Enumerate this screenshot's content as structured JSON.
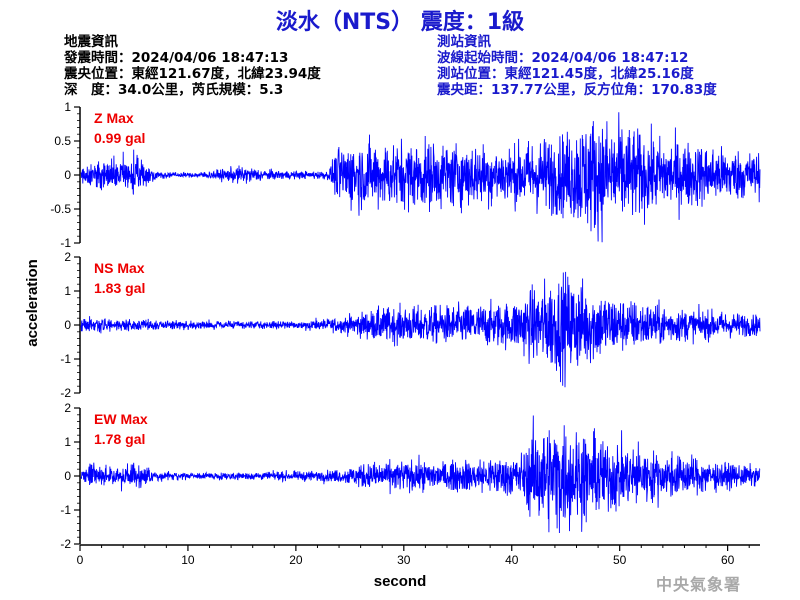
{
  "title": "淡水（NTS） 震度：1級",
  "eq_info": {
    "heading": "地震資訊",
    "origin_time": "發震時間：2024/04/06 18:47:13",
    "epicenter": "震央位置：東經121.67度，北緯23.94度",
    "depth_magnitude": "深　度：34.0公里，芮氏規模：5.3"
  },
  "station_info": {
    "heading": "測站資訊",
    "wave_start": "波線起始時間：2024/04/06 18:47:12",
    "location": "測站位置：東經121.45度，北緯25.16度",
    "distance": "震央距：137.77公里，反方位角：170.83度"
  },
  "watermark": "中央氣象署",
  "colors": {
    "trace": "#0000ff",
    "max_label": "#ee0000",
    "title": "#1a1acc"
  },
  "chart_data": [
    {
      "type": "line",
      "component": "Z",
      "max_label": "Z Max",
      "max_value": "0.99 gal",
      "ylim": [
        -1,
        1
      ],
      "yticks": [
        "1",
        "0.5",
        "0",
        "-0.5",
        "-1"
      ],
      "xlim": [
        0,
        63
      ],
      "envelope": {
        "t": [
          0,
          1,
          3,
          5,
          7,
          10,
          12,
          15,
          18,
          21,
          23,
          24,
          25,
          28,
          32,
          36,
          40,
          42,
          45,
          47,
          50,
          53,
          56,
          60,
          63
        ],
        "amp": [
          0.1,
          0.16,
          0.22,
          0.28,
          0.05,
          0.03,
          0.05,
          0.12,
          0.06,
          0.05,
          0.06,
          0.38,
          0.45,
          0.44,
          0.45,
          0.42,
          0.38,
          0.48,
          0.55,
          0.8,
          0.7,
          0.5,
          0.45,
          0.35,
          0.3
        ]
      },
      "peak_value": 0.99
    },
    {
      "type": "line",
      "component": "NS",
      "max_label": "NS Max",
      "max_value": "1.83 gal",
      "ylim": [
        -2,
        2
      ],
      "yticks": [
        "2",
        "1",
        "0",
        "-1",
        "-2"
      ],
      "xlim": [
        0,
        63
      ],
      "envelope": {
        "t": [
          0,
          1,
          3,
          6,
          10,
          15,
          20,
          24,
          25,
          28,
          32,
          36,
          40,
          42,
          43,
          45,
          46,
          48,
          50,
          53,
          56,
          60,
          63
        ],
        "amp": [
          0.2,
          0.3,
          0.22,
          0.18,
          0.15,
          0.12,
          0.15,
          0.25,
          0.35,
          0.6,
          0.65,
          0.7,
          0.8,
          1.3,
          1.5,
          1.8,
          1.6,
          1.25,
          0.95,
          0.75,
          0.55,
          0.45,
          0.35
        ]
      },
      "peak_value": 1.83
    },
    {
      "type": "line",
      "component": "EW",
      "max_label": "EW Max",
      "max_value": "1.78 gal",
      "ylim": [
        -2,
        2
      ],
      "yticks": [
        "2",
        "1",
        "0",
        "-1",
        "-2"
      ],
      "xlim": [
        0,
        63
      ],
      "envelope": {
        "t": [
          0,
          1,
          3,
          5,
          7,
          10,
          15,
          20,
          24,
          26,
          30,
          34,
          38,
          41,
          42,
          44,
          46,
          48,
          50,
          53,
          57,
          60,
          63
        ],
        "amp": [
          0.1,
          0.4,
          0.3,
          0.5,
          0.15,
          0.1,
          0.12,
          0.15,
          0.2,
          0.4,
          0.5,
          0.45,
          0.6,
          0.7,
          1.5,
          1.75,
          1.6,
          1.3,
          1.1,
          0.8,
          0.6,
          0.4,
          0.3
        ]
      },
      "peak_value": 1.78
    }
  ],
  "shared_axes": {
    "xlabel": "second",
    "ylabel": "acceleration",
    "xticks": [
      "0",
      "10",
      "20",
      "30",
      "40",
      "50",
      "60"
    ]
  }
}
